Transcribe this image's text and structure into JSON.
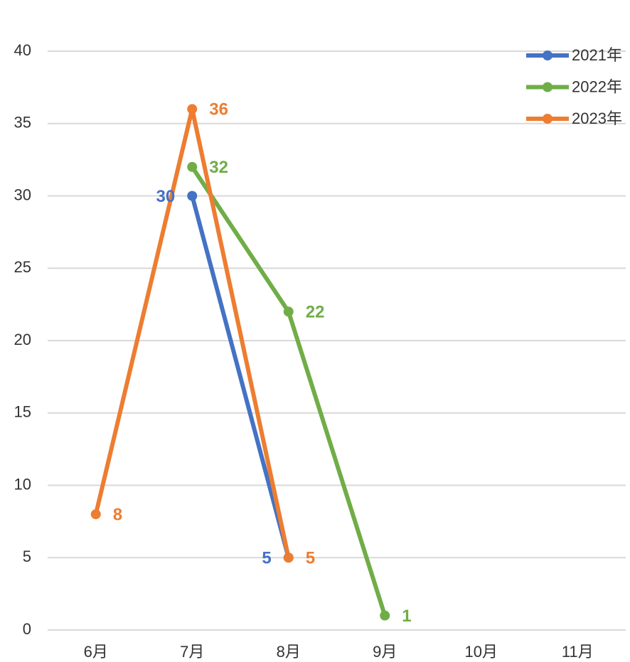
{
  "chart_data": {
    "type": "line",
    "categories": [
      "6月",
      "7月",
      "8月",
      "9月",
      "10月",
      "11月"
    ],
    "series": [
      {
        "name": "2021年",
        "color": "#4472c4",
        "values": [
          null,
          30,
          5,
          null,
          null,
          null
        ]
      },
      {
        "name": "2022年",
        "color": "#70ad47",
        "values": [
          null,
          32,
          22,
          1,
          null,
          null
        ]
      },
      {
        "name": "2023年",
        "color": "#ed7d31",
        "values": [
          8,
          36,
          5,
          null,
          null,
          null
        ]
      }
    ],
    "ylim": [
      0,
      40
    ],
    "yticks": [
      0,
      5,
      10,
      15,
      20,
      25,
      30,
      35,
      40
    ],
    "grid": true,
    "legend": "top-right"
  }
}
